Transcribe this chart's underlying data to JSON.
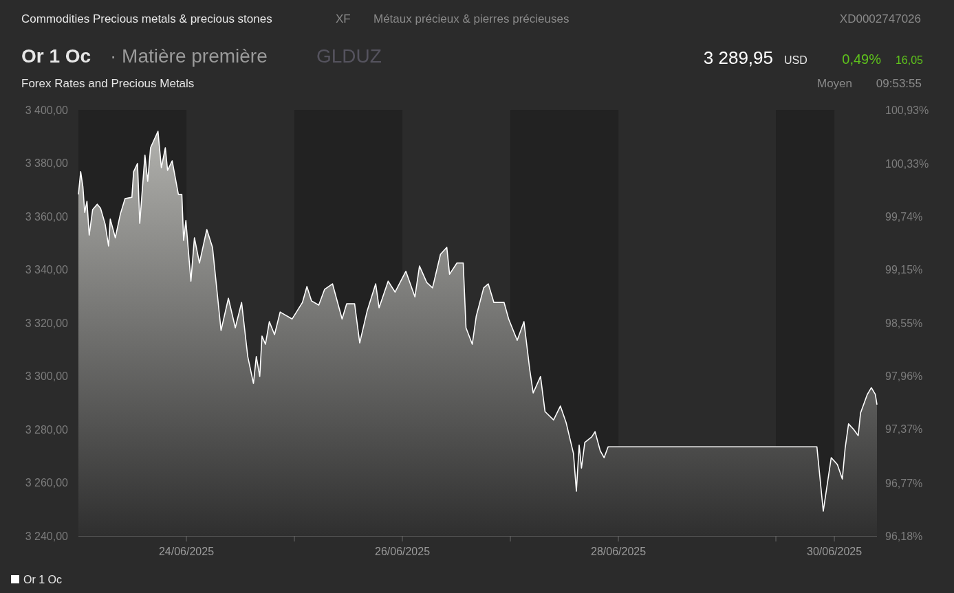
{
  "chart_data": {
    "type": "area",
    "title": "Or 1 Oc",
    "subtitle": "Forex Rates and Precious Metals",
    "annotations": [
      "Commodities Precious metals & precious stones",
      "XF",
      "Métaux précieux & pierres précieuses",
      "XD0002747026",
      "· Matière première",
      "GLDUZ",
      "3 289,95",
      "USD",
      "0,49%",
      "16,05",
      "Moyen",
      "09:53:55"
    ],
    "xlim": [
      "2025-06-23T00:00",
      "2025-06-30T09:28"
    ],
    "xticks": [
      {
        "value": "2025-06-24",
        "label": "24/06/2025"
      },
      {
        "value": "2025-06-25",
        "label": null
      },
      {
        "value": "2025-06-26",
        "label": "26/06/2025"
      },
      {
        "value": "2025-06-27",
        "label": null
      },
      {
        "value": "2025-06-28",
        "label": "28/06/2025"
      },
      {
        "value": "2025-06-29T11:00",
        "label": null
      },
      {
        "value": "2025-06-30",
        "label": "30/06/2025"
      }
    ],
    "ylim": [
      3240,
      3400
    ],
    "yticks": [
      {
        "value": 3240,
        "label": "3 240,00"
      },
      {
        "value": 3260,
        "label": "3 260,00"
      },
      {
        "value": 3280,
        "label": "3 280,00"
      },
      {
        "value": 3300,
        "label": "3 300,00"
      },
      {
        "value": 3320,
        "label": "3 320,00"
      },
      {
        "value": 3340,
        "label": "3 340,00"
      },
      {
        "value": 3360,
        "label": "3 360,00"
      },
      {
        "value": 3380,
        "label": "3 380,00"
      },
      {
        "value": 3400,
        "label": "3 400,00"
      }
    ],
    "y2lim": [
      96.18,
      100.93
    ],
    "y2ticks": [
      {
        "value": 96.18,
        "label": "96,18%"
      },
      {
        "value": 96.77,
        "label": "96,77%"
      },
      {
        "value": 97.37,
        "label": "97,37%"
      },
      {
        "value": 97.96,
        "label": "97,96%"
      },
      {
        "value": 98.55,
        "label": "98,55%"
      },
      {
        "value": 99.15,
        "label": "99,15%"
      },
      {
        "value": 99.74,
        "label": "99,74%"
      },
      {
        "value": 100.33,
        "label": "100,33%"
      },
      {
        "value": 100.93,
        "label": "100,93%"
      }
    ],
    "bands": [
      {
        "axis": "x",
        "from": "2025-06-23",
        "to": "2025-06-24",
        "color": "#222222"
      },
      {
        "axis": "x",
        "from": "2025-06-25",
        "to": "2025-06-26",
        "color": "#222222"
      },
      {
        "axis": "x",
        "from": "2025-06-27",
        "to": "2025-06-28",
        "color": "#222222"
      },
      {
        "axis": "x",
        "from": "2025-06-29T11:00",
        "to": "2025-06-30",
        "color": "#222222"
      }
    ],
    "legend": "bottom left",
    "series": [
      {
        "name": "Or 1 Oc",
        "color": "#ffffff",
        "x": [
          "2025-06-23T00:00",
          "2025-06-23T00:30",
          "2025-06-23T01:00",
          "2025-06-23T01:24",
          "2025-06-23T01:54",
          "2025-06-23T02:24",
          "2025-06-23T03:10",
          "2025-06-23T04:11",
          "2025-06-23T04:55",
          "2025-06-23T05:56",
          "2025-06-23T06:42",
          "2025-06-23T07:05",
          "2025-06-23T08:12",
          "2025-06-23T09:20",
          "2025-06-23T10:22",
          "2025-06-23T11:53",
          "2025-06-23T12:16",
          "2025-06-23T13:08",
          "2025-06-23T13:38",
          "2025-06-23T14:47",
          "2025-06-23T15:24",
          "2025-06-23T16:02",
          "2025-06-23T17:41",
          "2025-06-23T18:26",
          "2025-06-23T19:19",
          "2025-06-23T19:49",
          "2025-06-23T20:50",
          "2025-06-23T22:13",
          "2025-06-23T22:59",
          "2025-06-23T23:23",
          "2025-06-23T23:53",
          "2025-06-24T01:00",
          "2025-06-24T01:47",
          "2025-06-24T02:54",
          "2025-06-24T04:32",
          "2025-06-24T05:48",
          "2025-06-24T07:42",
          "2025-06-24T09:20",
          "2025-06-24T10:52",
          "2025-06-24T12:16",
          "2025-06-24T13:38",
          "2025-06-24T14:54",
          "2025-06-24T15:32",
          "2025-06-24T16:18",
          "2025-06-24T16:48",
          "2025-06-24T17:34",
          "2025-06-24T18:26",
          "2025-06-24T19:35",
          "2025-06-24T20:50",
          "2025-06-24T23:30",
          "2025-06-25T01:47",
          "2025-06-25T02:47",
          "2025-06-25T03:48",
          "2025-06-25T05:25",
          "2025-06-25T06:42",
          "2025-06-25T08:28",
          "2025-06-25T10:36",
          "2025-06-25T11:37",
          "2025-06-25T13:23",
          "2025-06-25T14:31",
          "2025-06-25T16:11",
          "2025-06-25T18:04",
          "2025-06-25T18:49",
          "2025-06-25T20:50",
          "2025-06-25T22:22",
          "2025-06-26T00:46",
          "2025-06-26T02:47",
          "2025-06-26T03:48",
          "2025-06-26T05:25",
          "2025-06-26T06:42",
          "2025-06-26T08:28",
          "2025-06-26T09:52",
          "2025-06-26T10:29",
          "2025-06-26T12:07",
          "2025-06-26T13:31",
          "2025-06-26T14:08",
          "2025-06-26T15:32",
          "2025-06-26T16:25",
          "2025-06-26T18:04",
          "2025-06-26T19:05",
          "2025-06-26T20:20",
          "2025-06-26T22:36",
          "2025-06-26T23:37",
          "2025-06-27T01:31",
          "2025-06-27T03:01",
          "2025-06-27T04:18",
          "2025-06-27T05:04",
          "2025-06-27T06:42",
          "2025-06-27T07:42",
          "2025-06-27T09:36",
          "2025-06-27T11:07",
          "2025-06-27T12:23",
          "2025-06-27T14:01",
          "2025-06-27T14:40",
          "2025-06-27T15:17",
          "2025-06-27T15:48",
          "2025-06-27T16:32",
          "2025-06-27T18:04",
          "2025-06-27T18:49",
          "2025-06-27T19:58",
          "2025-06-27T20:50",
          "2025-06-27T21:43",
          "2025-06-29T20:07",
          "2025-06-29T21:32",
          "2025-06-29T23:18",
          "2025-06-30T00:41",
          "2025-06-30T01:46",
          "2025-06-30T02:24",
          "2025-06-30T03:09",
          "2025-06-30T04:18",
          "2025-06-30T05:18",
          "2025-06-30T05:49",
          "2025-06-30T07:20",
          "2025-06-30T08:13",
          "2025-06-30T09:06",
          "2025-06-30T09:28"
        ],
        "values": [
          3368.3,
          3376.8,
          3371.1,
          3361.5,
          3365.7,
          3353.0,
          3362.6,
          3364.6,
          3363.1,
          3357.2,
          3348.9,
          3359.0,
          3352.0,
          3361.0,
          3366.7,
          3367.2,
          3376.8,
          3379.9,
          3357.4,
          3383.0,
          3373.2,
          3385.8,
          3392.0,
          3378.3,
          3385.8,
          3377.3,
          3380.9,
          3368.3,
          3368.3,
          3351.0,
          3358.5,
          3335.7,
          3352.0,
          3342.5,
          3355.1,
          3348.4,
          3317.2,
          3329.3,
          3318.2,
          3327.7,
          3307.4,
          3297.3,
          3307.4,
          3299.9,
          3315.1,
          3312.0,
          3320.5,
          3315.6,
          3324.1,
          3321.5,
          3327.7,
          3333.7,
          3328.3,
          3326.7,
          3332.6,
          3334.7,
          3321.5,
          3327.2,
          3327.2,
          3312.5,
          3324.6,
          3334.7,
          3325.7,
          3335.7,
          3331.6,
          3339.4,
          3329.8,
          3341.4,
          3335.2,
          3333.2,
          3345.8,
          3348.4,
          3338.3,
          3342.5,
          3342.5,
          3318.2,
          3312.0,
          3322.6,
          3333.2,
          3334.7,
          3327.7,
          3327.7,
          3321.5,
          3313.5,
          3320.5,
          3302.5,
          3293.7,
          3299.9,
          3286.7,
          3283.6,
          3288.8,
          3282.6,
          3271.0,
          3256.8,
          3274.1,
          3265.5,
          3275.1,
          3277.2,
          3279.2,
          3272.0,
          3269.4,
          3273.5,
          3273.5,
          3249.3,
          3269.4,
          3266.8,
          3261.4,
          3273.0,
          3282.1,
          3280.0,
          3277.7,
          3286.2,
          3293.2,
          3295.7,
          3293.2,
          3289.3
        ]
      }
    ]
  }
}
